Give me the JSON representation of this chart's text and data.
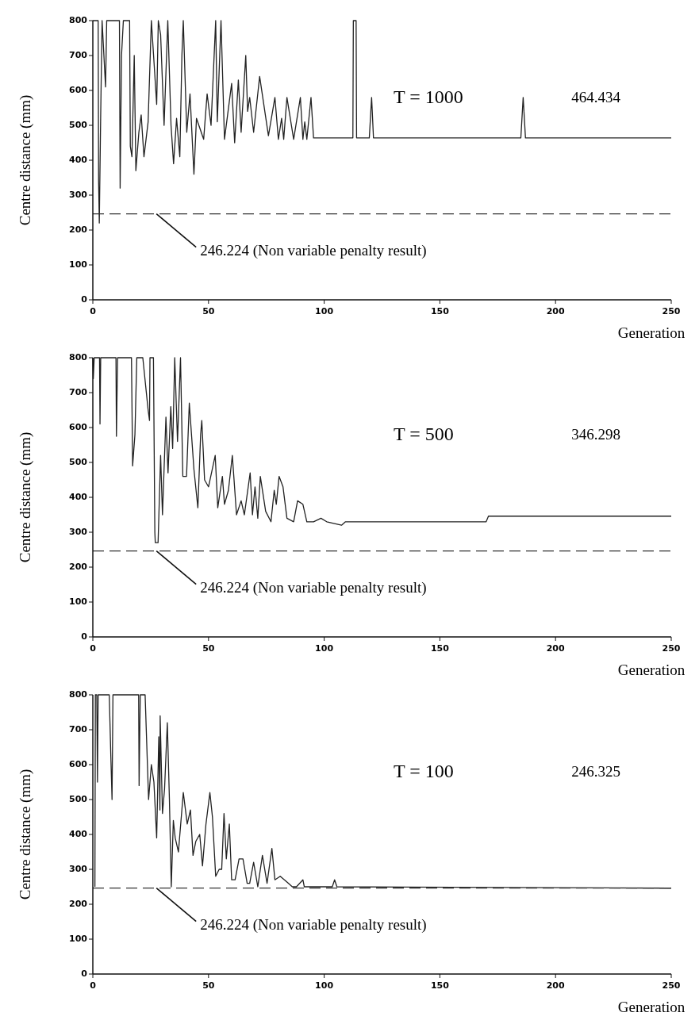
{
  "chart_data": [
    {
      "type": "line",
      "xlabel": "Generation",
      "ylabel": "Centre distance (mm)",
      "xlim": [
        0,
        250
      ],
      "xticks": [
        0,
        50,
        100,
        150,
        200,
        250
      ],
      "ylim": [
        0,
        800
      ],
      "yticks": [
        0,
        100,
        200,
        300,
        400,
        500,
        600,
        700,
        800
      ],
      "marker": "none",
      "line_style": "solid",
      "annotations": [
        "T = 1000",
        "464.434"
      ],
      "ref_lines": [
        {
          "axis": "y",
          "value": 246.224,
          "label": "246.224 (Non variable penalty result)",
          "line_style": "dashed",
          "color": "#333333"
        }
      ],
      "series": [
        {
          "color": "#222222",
          "x": [
            0,
            2.3,
            2.5,
            2.8,
            3.4,
            4,
            5.5,
            6,
            11.5,
            11.8,
            12.4,
            13.2,
            15.9,
            16.2,
            16.9,
            17.9,
            18.6,
            19.9,
            20.9,
            22.1,
            23.9,
            25.3,
            27.6,
            28.3,
            29.3,
            30.8,
            32.4,
            33.8,
            34.9,
            36.2,
            37.6,
            38.5,
            39.1,
            40.6,
            42,
            43.7,
            44.8,
            47.9,
            49.4,
            51.1,
            52.5,
            53.1,
            53.8,
            55.4,
            56.9,
            60,
            61.3,
            62.9,
            64.1,
            66.1,
            66.9,
            67.8,
            69.5,
            72.1,
            75.9,
            78.7,
            80.2,
            81.6,
            82.5,
            83.9,
            86.8,
            89.7,
            90.8,
            91.6,
            92.5,
            94.3,
            95.4,
            112.4,
            112.6,
            113.8,
            114,
            119.5,
            120.5,
            121.3,
            185,
            186,
            187,
            250
          ],
          "values": [
            800,
            800,
            340,
            220,
            530,
            800,
            610,
            800,
            800,
            320,
            700,
            800,
            800,
            440,
            410,
            700,
            370,
            480,
            530,
            410,
            510,
            800,
            560,
            800,
            760,
            500,
            800,
            500,
            390,
            520,
            410,
            700,
            800,
            480,
            590,
            360,
            520,
            460,
            590,
            500,
            710,
            800,
            510,
            800,
            460,
            620,
            450,
            630,
            480,
            700,
            540,
            580,
            480,
            640,
            470,
            580,
            460,
            520,
            460,
            580,
            460,
            580,
            460,
            510,
            460,
            580,
            464,
            464,
            800,
            800,
            464,
            464,
            580,
            464,
            464,
            580,
            464,
            464
          ]
        }
      ]
    },
    {
      "type": "line",
      "xlabel": "Generation",
      "ylabel": "Centre distance (mm)",
      "xlim": [
        0,
        250
      ],
      "xticks": [
        0,
        50,
        100,
        150,
        200,
        250
      ],
      "ylim": [
        0,
        800
      ],
      "yticks": [
        0,
        100,
        200,
        300,
        400,
        500,
        600,
        700,
        800
      ],
      "marker": "none",
      "line_style": "solid",
      "annotations": [
        "T = 500",
        "346.298"
      ],
      "ref_lines": [
        {
          "axis": "y",
          "value": 246.224,
          "label": "246.224 (Non variable penalty result)",
          "line_style": "dashed",
          "color": "#333333"
        }
      ],
      "series": [
        {
          "color": "#222222",
          "x": [
            0,
            0.2,
            0.6,
            2.9,
            3.1,
            3.4,
            10,
            10.2,
            10.7,
            16.7,
            17.2,
            18.2,
            19,
            21.6,
            23.9,
            24.5,
            24.7,
            26.2,
            26.8,
            27,
            28.2,
            29.3,
            30.1,
            31,
            31.6,
            32.5,
            33.7,
            34.5,
            35.4,
            36.6,
            37.9,
            38.9,
            40.5,
            41.7,
            43.7,
            45.4,
            46.6,
            47.1,
            48.3,
            50,
            52.9,
            54,
            56,
            56.9,
            58.6,
            60.3,
            62.1,
            64.1,
            65.5,
            68,
            69,
            70.1,
            71.3,
            72.4,
            74.7,
            77,
            78.4,
            79.3,
            80.5,
            82.2,
            83.9,
            86.8,
            88.5,
            90.8,
            92.5,
            95.4,
            98.6,
            101.1,
            107.5,
            109.2,
            170,
            171,
            250
          ],
          "values": [
            800,
            740,
            800,
            800,
            610,
            800,
            800,
            575,
            800,
            800,
            490,
            580,
            800,
            800,
            650,
            620,
            800,
            800,
            300,
            270,
            270,
            520,
            350,
            520,
            630,
            470,
            660,
            540,
            800,
            560,
            800,
            460,
            460,
            670,
            480,
            370,
            580,
            620,
            450,
            430,
            520,
            370,
            460,
            380,
            420,
            520,
            350,
            390,
            350,
            470,
            350,
            430,
            340,
            460,
            360,
            330,
            420,
            380,
            460,
            430,
            340,
            330,
            390,
            380,
            330,
            330,
            340,
            330,
            320,
            330,
            330,
            346,
            346
          ]
        }
      ]
    },
    {
      "type": "line",
      "xlabel": "Generation",
      "ylabel": "Centre distance (mm)",
      "xlim": [
        0,
        250
      ],
      "xticks": [
        0,
        50,
        100,
        150,
        200,
        250
      ],
      "ylim": [
        0,
        800
      ],
      "yticks": [
        0,
        100,
        200,
        300,
        400,
        500,
        600,
        700,
        800
      ],
      "marker": "none",
      "line_style": "solid",
      "annotations": [
        "T = 100",
        "246.325"
      ],
      "ref_lines": [
        {
          "axis": "y",
          "value": 246.224,
          "label": "246.224 (Non variable penalty result)",
          "line_style": "dashed",
          "color": "#333333"
        }
      ],
      "series": [
        {
          "color": "#222222",
          "x": [
            0.9,
            1.1,
            1.7,
            2,
            2.3,
            7.1,
            7.8,
            8.3,
            8.7,
            19.8,
            20,
            20.5,
            22.6,
            23.6,
            24.1,
            25.3,
            26.4,
            27.6,
            28.5,
            29,
            29.1,
            30.1,
            31,
            32.2,
            33.1,
            33.9,
            34.8,
            35.6,
            37,
            39.1,
            40.8,
            42.2,
            43.3,
            44.5,
            46.2,
            47.4,
            48.9,
            50.6,
            51.7,
            53.1,
            54.6,
            55.7,
            56.7,
            57.7,
            59,
            60,
            61.5,
            63.2,
            64.9,
            66.7,
            67.8,
            69.5,
            71.3,
            73.3,
            75.3,
            77.4,
            78.7,
            81,
            82.8,
            84.5,
            86.2,
            88,
            90.8,
            91.4,
            103.5,
            104.5,
            105.5,
            250
          ],
          "values": [
            250,
            800,
            800,
            550,
            800,
            800,
            620,
            500,
            800,
            800,
            540,
            800,
            800,
            600,
            500,
            600,
            550,
            390,
            680,
            470,
            740,
            460,
            530,
            720,
            500,
            250,
            440,
            390,
            350,
            520,
            430,
            470,
            340,
            380,
            400,
            310,
            430,
            520,
            450,
            280,
            300,
            300,
            460,
            330,
            430,
            270,
            270,
            330,
            330,
            260,
            260,
            320,
            250,
            340,
            260,
            360,
            270,
            280,
            270,
            260,
            250,
            250,
            270,
            250,
            250,
            270,
            250,
            246
          ]
        }
      ]
    }
  ]
}
